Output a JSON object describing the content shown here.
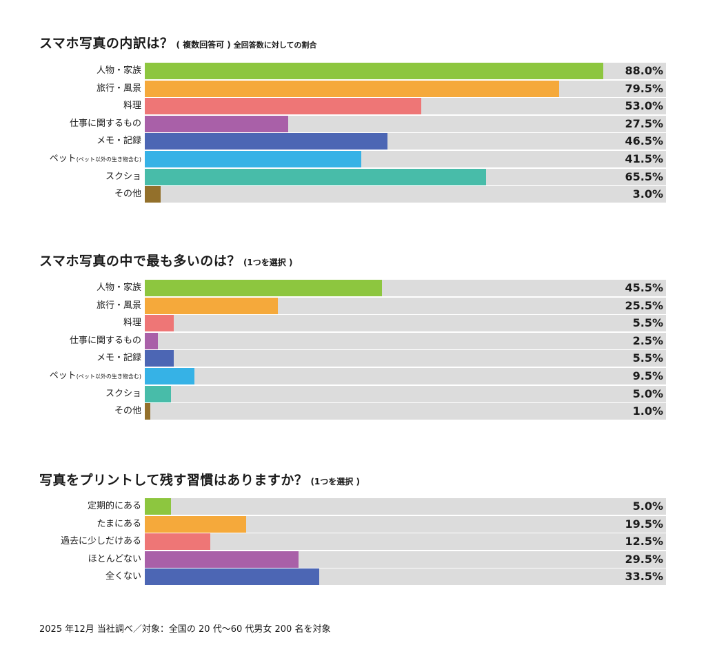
{
  "colors": {
    "green": "#8dc63f",
    "orange": "#f5a93b",
    "coral": "#ee7676",
    "purple": "#a960a8",
    "blue": "#4c66b4",
    "skyblue": "#36b2e6",
    "teal": "#48bca9",
    "brown": "#93702b",
    "track": "#dcdcdc"
  },
  "chart_data": [
    {
      "type": "bar",
      "orientation": "horizontal",
      "title": "スマホ写真の内訳は？",
      "subtitle": "( 複数回答可 )",
      "note": "全回答数に対しての割合",
      "xlim": [
        0,
        100
      ],
      "categories": [
        "人物・家族",
        "旅行・風景",
        "料理",
        "仕事に関するもの",
        "メモ・記録",
        "ペット",
        "スクショ",
        "その他"
      ],
      "category_notes": [
        "",
        "",
        "",
        "",
        "",
        "(ペット以外の生き物含む)",
        "",
        ""
      ],
      "values": [
        88.0,
        79.5,
        53.0,
        27.5,
        46.5,
        41.5,
        65.5,
        3.0
      ],
      "value_labels": [
        "88.0%",
        "79.5%",
        "53.0%",
        "27.5%",
        "46.5%",
        "41.5%",
        "65.5%",
        "3.0%"
      ],
      "bar_colors": [
        "green",
        "orange",
        "coral",
        "purple",
        "blue",
        "skyblue",
        "teal",
        "brown"
      ]
    },
    {
      "type": "bar",
      "orientation": "horizontal",
      "title": "スマホ写真の中で最も多いのは？",
      "subtitle": "(1つを選択 )",
      "note": "",
      "xlim": [
        0,
        50
      ],
      "categories": [
        "人物・家族",
        "旅行・風景",
        "料理",
        "仕事に関するもの",
        "メモ・記録",
        "ペット",
        "スクショ",
        "その他"
      ],
      "category_notes": [
        "",
        "",
        "",
        "",
        "",
        "(ペット以外の生き物含む)",
        "",
        ""
      ],
      "values": [
        45.5,
        25.5,
        5.5,
        2.5,
        5.5,
        9.5,
        5.0,
        1.0
      ],
      "value_labels": [
        "45.5%",
        "25.5%",
        "5.5%",
        "2.5%",
        "5.5%",
        "9.5%",
        "5.0%",
        "1.0%"
      ],
      "bar_colors": [
        "green",
        "orange",
        "coral",
        "purple",
        "blue",
        "skyblue",
        "teal",
        "brown"
      ]
    },
    {
      "type": "bar",
      "orientation": "horizontal",
      "title": "写真をプリントして残す習慣はありますか？",
      "subtitle": "(1つを選択 )",
      "note": "",
      "xlim": [
        0,
        100
      ],
      "categories": [
        "定期的にある",
        "たまにある",
        "過去に少しだけある",
        "ほとんどない",
        "全くない"
      ],
      "category_notes": [
        "",
        "",
        "",
        "",
        ""
      ],
      "values": [
        5.0,
        19.5,
        12.5,
        29.5,
        33.5
      ],
      "value_labels": [
        "5.0%",
        "19.5%",
        "12.5%",
        "29.5%",
        "33.5%"
      ],
      "bar_colors": [
        "green",
        "orange",
        "coral",
        "purple",
        "blue"
      ]
    }
  ],
  "footer": "2025 年12月 当社調べ／対象：全国の 20 代〜60 代男女 200 名を対象"
}
